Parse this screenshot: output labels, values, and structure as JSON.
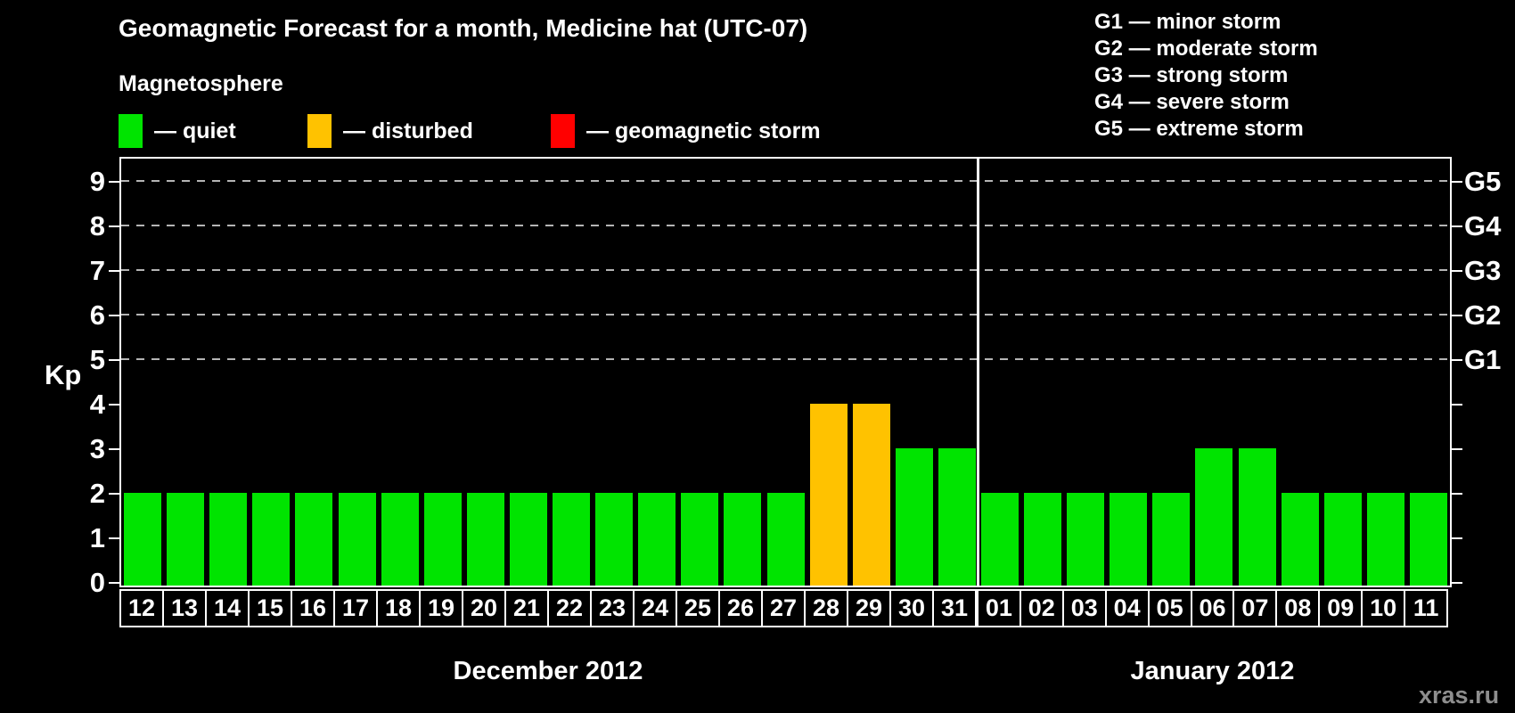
{
  "title": "Geomagnetic Forecast for a month, Medicine hat (UTC-07)",
  "subtitle": "Magnetosphere",
  "legend": [
    {
      "status": "quiet",
      "label": "— quiet"
    },
    {
      "status": "disturbed",
      "label": "— disturbed"
    },
    {
      "status": "storm",
      "label": "— geomagnetic storm"
    }
  ],
  "g_legend": [
    "G1 — minor storm",
    "G2 — moderate storm",
    "G3 — strong storm",
    "G4 — severe storm",
    "G5 — extreme storm"
  ],
  "y_axis": {
    "title": "Kp",
    "ticks": [
      0,
      1,
      2,
      3,
      4,
      5,
      6,
      7,
      8,
      9
    ]
  },
  "g_scale": [
    {
      "label": "G1",
      "kp": 5
    },
    {
      "label": "G2",
      "kp": 6
    },
    {
      "label": "G3",
      "kp": 7
    },
    {
      "label": "G4",
      "kp": 8
    },
    {
      "label": "G5",
      "kp": 9
    }
  ],
  "watermark": "xras.ru",
  "chart_data": {
    "type": "bar",
    "title": "Geomagnetic Forecast for a month, Medicine hat (UTC-07)",
    "ylabel": "Kp",
    "ylim": [
      0,
      9.5
    ],
    "grid_kp_levels": [
      5,
      6,
      7,
      8,
      9
    ],
    "legend_position": "top-left",
    "colors": {
      "quiet": "#00e400",
      "disturbed": "#ffc200",
      "storm": "#ff0000"
    },
    "months": [
      {
        "label": "December 2012",
        "days": [
          "12",
          "13",
          "14",
          "15",
          "16",
          "17",
          "18",
          "19",
          "20",
          "21",
          "22",
          "23",
          "24",
          "25",
          "26",
          "27",
          "28",
          "29",
          "30",
          "31"
        ],
        "values": [
          2,
          2,
          2,
          2,
          2,
          2,
          2,
          2,
          2,
          2,
          2,
          2,
          2,
          2,
          2,
          2,
          4,
          4,
          3,
          3
        ],
        "statuses": [
          "quiet",
          "quiet",
          "quiet",
          "quiet",
          "quiet",
          "quiet",
          "quiet",
          "quiet",
          "quiet",
          "quiet",
          "quiet",
          "quiet",
          "quiet",
          "quiet",
          "quiet",
          "quiet",
          "disturbed",
          "disturbed",
          "quiet",
          "quiet"
        ]
      },
      {
        "label": "January 2012",
        "days": [
          "01",
          "02",
          "03",
          "04",
          "05",
          "06",
          "07",
          "08",
          "09",
          "10",
          "11"
        ],
        "values": [
          2,
          2,
          2,
          2,
          2,
          3,
          3,
          2,
          2,
          2,
          2
        ],
        "statuses": [
          "quiet",
          "quiet",
          "quiet",
          "quiet",
          "quiet",
          "quiet",
          "quiet",
          "quiet",
          "quiet",
          "quiet",
          "quiet"
        ]
      }
    ]
  }
}
